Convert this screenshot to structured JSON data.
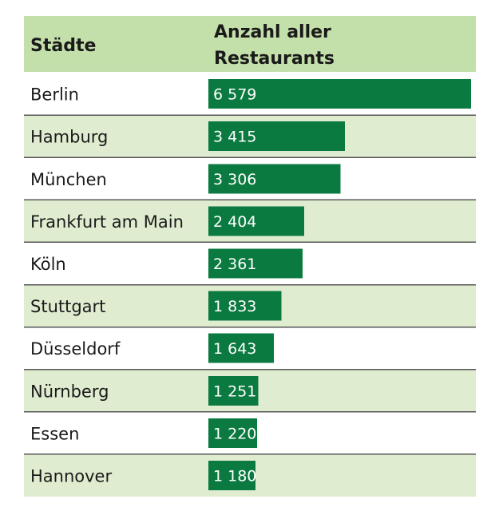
{
  "colors": {
    "header_bg": "#c3dfaa",
    "row_alt_bg": "#dfeccf",
    "row_bg": "#ffffff",
    "bar": "#0b7a40",
    "separator": "#555555"
  },
  "header": {
    "col1": "Städte",
    "col2_line1": "Anzahl aller",
    "col2_line2": "Restaurants"
  },
  "chart_data": {
    "type": "bar",
    "orientation": "horizontal",
    "title": "",
    "column_headers": [
      "Städte",
      "Anzahl aller Restaurants"
    ],
    "categories": [
      "Berlin",
      "Hamburg",
      "München",
      "Frankfurt am Main",
      "Köln",
      "Stuttgart",
      "Düsseldorf",
      "Nürnberg",
      "Essen",
      "Hannover"
    ],
    "values": [
      6579,
      3415,
      3306,
      2404,
      2361,
      1833,
      1643,
      1251,
      1220,
      1180
    ],
    "value_labels": [
      "6 579",
      "3 415",
      "3 306",
      "2 404",
      "2 361",
      "1 833",
      "1 643",
      "1 251",
      "1 220",
      "1 180"
    ],
    "xlim": [
      0,
      6579
    ],
    "grid": false,
    "legend": "none"
  }
}
